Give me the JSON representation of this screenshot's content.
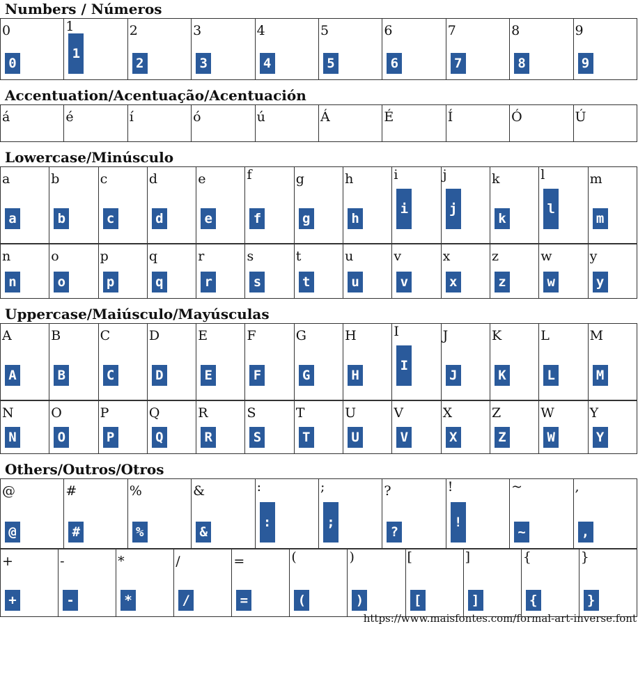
{
  "glyph_color": "#2a5a9b",
  "sections": [
    {
      "title": "Numbers / Números",
      "rows": [
        [
          "0",
          "1",
          "2",
          "3",
          "4",
          "5",
          "6",
          "7",
          "8",
          "9"
        ]
      ],
      "glyphs": true,
      "row_heights": [
        88
      ]
    },
    {
      "title": "Accentuation/Acentuação/Acentuación",
      "rows": [
        [
          "á",
          "é",
          "í",
          "ó",
          "ú",
          "Á",
          "É",
          "Í",
          "Ó",
          "Ú"
        ]
      ],
      "glyphs": false,
      "row_heights": [
        53
      ]
    },
    {
      "title": "Lowercase/Minúsculo",
      "rows": [
        [
          "a",
          "b",
          "c",
          "d",
          "e",
          "f",
          "g",
          "h",
          "i",
          "j",
          "k",
          "l",
          "m"
        ],
        [
          "n",
          "o",
          "p",
          "q",
          "r",
          "s",
          "t",
          "u",
          "v",
          "x",
          "z",
          "w",
          "y"
        ]
      ],
      "glyphs": true,
      "row_heights": [
        110,
        78
      ]
    },
    {
      "title": "Uppercase/Maiúsculo/Mayúsculas",
      "rows": [
        [
          "A",
          "B",
          "C",
          "D",
          "E",
          "F",
          "G",
          "H",
          "I",
          "J",
          "K",
          "L",
          "M"
        ],
        [
          "N",
          "O",
          "P",
          "Q",
          "R",
          "S",
          "T",
          "U",
          "V",
          "X",
          "Z",
          "W",
          "Y"
        ]
      ],
      "glyphs": true,
      "row_heights": [
        110,
        76
      ]
    },
    {
      "title": "Others/Outros/Otros",
      "rows": [
        [
          "@",
          "#",
          "%",
          "&",
          ":",
          ";",
          "?",
          "!",
          "~",
          ","
        ],
        [
          "+",
          "-",
          "*",
          "/",
          "=",
          "(",
          ")",
          "[",
          "]",
          "{",
          "}"
        ]
      ],
      "glyphs": true,
      "row_heights": [
        100,
        97
      ]
    }
  ],
  "footer_url": "https://www.maisfontes.com/formal-art-inverse.font"
}
